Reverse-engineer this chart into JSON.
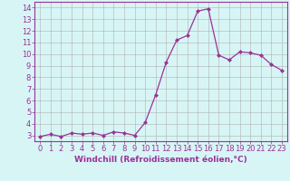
{
  "xlabel": "Windchill (Refroidissement éolien,°C)",
  "x": [
    0,
    1,
    2,
    3,
    4,
    5,
    6,
    7,
    8,
    9,
    10,
    11,
    12,
    13,
    14,
    15,
    16,
    17,
    18,
    19,
    20,
    21,
    22,
    23
  ],
  "y": [
    2.9,
    3.1,
    2.9,
    3.2,
    3.1,
    3.2,
    3.0,
    3.3,
    3.2,
    3.0,
    4.1,
    6.5,
    9.3,
    11.2,
    11.6,
    13.7,
    13.9,
    9.9,
    9.5,
    10.2,
    10.1,
    9.9,
    9.1,
    8.6
  ],
  "line_color": "#993399",
  "marker": "D",
  "marker_size": 2.0,
  "bg_color": "#d8f5f5",
  "grid_color": "#b0b0b0",
  "ylim": [
    2.5,
    14.5
  ],
  "yticks": [
    3,
    4,
    5,
    6,
    7,
    8,
    9,
    10,
    11,
    12,
    13,
    14
  ],
  "xlim": [
    -0.5,
    23.5
  ],
  "xticks": [
    0,
    1,
    2,
    3,
    4,
    5,
    6,
    7,
    8,
    9,
    10,
    11,
    12,
    13,
    14,
    15,
    16,
    17,
    18,
    19,
    20,
    21,
    22,
    23
  ],
  "tick_color": "#993399",
  "label_color": "#993399",
  "axis_label_fontsize": 6.5,
  "tick_fontsize": 6.0,
  "linewidth": 0.9
}
